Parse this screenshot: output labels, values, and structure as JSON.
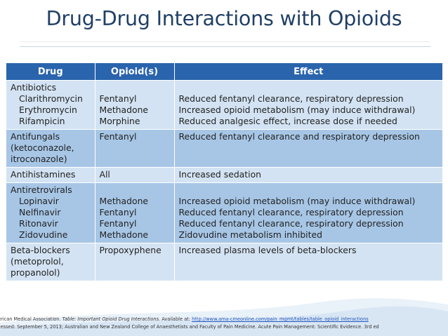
{
  "title": "Drug-Drug Interactions with Opioids",
  "table": {
    "headers": [
      "Drug",
      "Opioid(s)",
      "Effect"
    ],
    "rows": [
      {
        "drug": [
          "Antibiotics",
          "Clarithromycin",
          "Erythromycin",
          "Rifampicin"
        ],
        "opioids": [
          "",
          "Fentanyl",
          "Methadone",
          "Morphine"
        ],
        "effects": [
          "",
          "Reduced fentanyl clearance, respiratory depression",
          "Increased opioid metabolism (may induce withdrawal)",
          "Reduced analgesic effect, increase dose if needed"
        ]
      },
      {
        "drug": [
          "Antifungals",
          "(ketoconazole,",
          "itroconazole)"
        ],
        "opioids": [
          "Fentanyl"
        ],
        "effects": [
          "Reduced fentanyl clearance and respiratory depression"
        ]
      },
      {
        "drug": [
          "Antihistamines"
        ],
        "opioids": [
          "All"
        ],
        "effects": [
          "Increased sedation"
        ]
      },
      {
        "drug": [
          "Antiretrovirals",
          "Lopinavir",
          "Nelfinavir",
          "Ritonavir",
          "Zidovudine"
        ],
        "opioids": [
          "",
          "Methadone",
          "Fentanyl",
          "Fentanyl",
          "Methadone"
        ],
        "effects": [
          "",
          "Increased opioid metabolism (may induce withdrawal)",
          "Reduced fentanyl clearance, respiratory depression",
          "Reduced fentanyl clearance, respiratory depression",
          "Zidovudine metabolism inhibited"
        ]
      },
      {
        "drug": [
          "Beta-blockers",
          "(metoprolol,",
          "propanolol)"
        ],
        "opioids": [
          "Propoxyphene"
        ],
        "effects": [
          "Increased plasma levels of beta-blockers"
        ]
      }
    ]
  },
  "footer": {
    "line1_a": "erican Medical Association. ",
    "line1_b": "Table: Important Opioid Drug Interactions.",
    "line1_c": " Available at: ",
    "line1_link": "http://www.ama-cmeonline.com/pain_mgmt/tables/table_opioid_interactions",
    "line2": "cessed: September 5, 2013; Australian and New Zealand College of Anaesthetists and Faculty of Pain Medicine. Acute Pain Management: Scientific Evidence. 3rd ed"
  },
  "colors": {
    "title": "#1f3f66",
    "header_bg": "#2a64ad",
    "row_light": "#d3e3f3",
    "row_dark": "#a7c6e6"
  }
}
